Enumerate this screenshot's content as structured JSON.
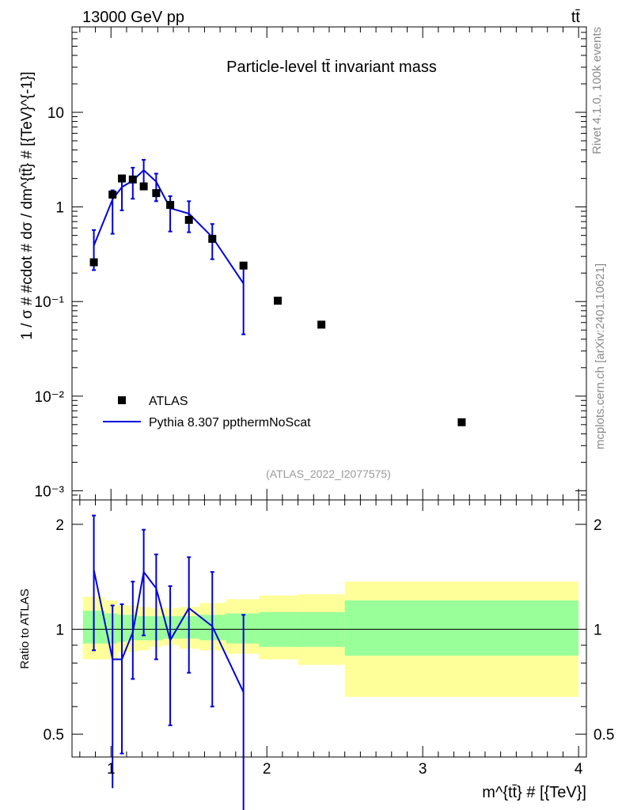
{
  "header": {
    "left": "13000 GeV pp",
    "right": "tt̄"
  },
  "side_labels": {
    "rivet": "Rivet 4.1.0,  100k events",
    "mcplots": "mcplots.cern.ch [arXiv:2401.10621]"
  },
  "chart_data": [
    {
      "type": "scatter",
      "title": "Particle-level tt̄ invariant mass",
      "watermark": "(ATLAS_2022_I2077575)",
      "ylabel": "1 / σ # #cdot # dσ / dm^{tt̄} # [{TeV}^{-1}]",
      "xlabel": "m^{tt̄} # [{TeV}]",
      "yscale": "log",
      "xlim": [
        0.75,
        4.05
      ],
      "ylim": [
        0.0008,
        80
      ],
      "y_ticks": [
        {
          "value": 0.001,
          "label": "10⁻³"
        },
        {
          "value": 0.01,
          "label": "10⁻²"
        },
        {
          "value": 0.1,
          "label": "10⁻¹"
        },
        {
          "value": 1,
          "label": "1"
        },
        {
          "value": 10,
          "label": "10"
        }
      ],
      "legend": [
        "ATLAS",
        "Pythia 8.307 ppthermNoScat"
      ],
      "series": [
        {
          "name": "ATLAS",
          "style": "marker",
          "x": [
            0.89,
            1.01,
            1.07,
            1.14,
            1.21,
            1.29,
            1.38,
            1.5,
            1.65,
            1.85,
            2.07,
            2.35,
            3.25
          ],
          "y": [
            0.26,
            1.35,
            2.0,
            1.95,
            1.65,
            1.4,
            1.05,
            0.73,
            0.46,
            0.24,
            0.102,
            0.057,
            0.0053
          ]
        },
        {
          "name": "Pythia 8.307 ppthermNoScat",
          "style": "line",
          "x": [
            0.89,
            1.01,
            1.07,
            1.14,
            1.21,
            1.29,
            1.38,
            1.5,
            1.65,
            1.85
          ],
          "y": [
            0.39,
            1.2,
            1.62,
            1.9,
            2.45,
            1.85,
            0.97,
            0.85,
            0.48,
            0.155
          ],
          "err_lo": [
            0.215,
            0.52,
            0.92,
            1.22,
            1.62,
            1.15,
            0.55,
            0.54,
            0.28,
            0.045
          ],
          "err_hi": [
            0.57,
            1.5,
            1.95,
            2.6,
            3.15,
            2.25,
            1.3,
            1.15,
            0.66,
            0.24
          ]
        }
      ]
    },
    {
      "type": "line",
      "ylabel": "Ratio to ATLAS",
      "xlim": [
        0.75,
        4.05
      ],
      "ylim": [
        0.43,
        2.35
      ],
      "yscale": "log",
      "y_ticks": [
        0.5,
        1,
        2
      ],
      "x_ticks": [
        1,
        2,
        3,
        4
      ],
      "bands": {
        "edges": [
          0.82,
          0.96,
          1.04,
          1.1,
          1.17,
          1.25,
          1.33,
          1.44,
          1.57,
          1.74,
          1.95,
          2.2,
          2.5,
          4.0
        ],
        "yellow_lo": [
          0.82,
          0.82,
          0.86,
          0.86,
          0.87,
          0.89,
          0.9,
          0.88,
          0.87,
          0.85,
          0.82,
          0.79,
          0.64
        ],
        "yellow_hi": [
          1.24,
          1.21,
          1.17,
          1.17,
          1.16,
          1.15,
          1.15,
          1.16,
          1.19,
          1.22,
          1.25,
          1.26,
          1.37
        ],
        "green_lo": [
          0.91,
          0.91,
          0.92,
          0.93,
          0.93,
          0.93,
          0.94,
          0.94,
          0.93,
          0.91,
          0.89,
          0.89,
          0.84
        ],
        "green_hi": [
          1.13,
          1.11,
          1.1,
          1.1,
          1.09,
          1.09,
          1.09,
          1.09,
          1.1,
          1.11,
          1.12,
          1.12,
          1.21
        ]
      },
      "series": [
        {
          "name": "Pythia 8.307 ppthermNoScat",
          "x": [
            0.89,
            1.01,
            1.07,
            1.14,
            1.21,
            1.29,
            1.38,
            1.5,
            1.65,
            1.85
          ],
          "y": [
            1.48,
            0.82,
            0.82,
            0.98,
            1.46,
            1.31,
            0.93,
            1.15,
            1.02,
            0.66
          ],
          "err_lo": [
            0.87,
            0.35,
            0.44,
            0.72,
            0.96,
            0.82,
            0.53,
            0.75,
            0.6,
            0.3
          ],
          "err_hi": [
            2.12,
            1.17,
            1.18,
            1.37,
            1.93,
            1.64,
            1.33,
            1.61,
            1.46,
            1.1
          ]
        }
      ]
    }
  ]
}
